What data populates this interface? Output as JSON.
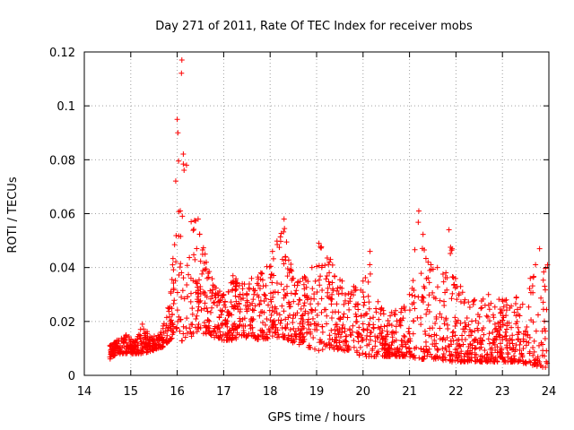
{
  "chart_data": {
    "type": "scatter",
    "title": "Day 271 of 2011, Rate Of TEC Index for receiver mobs",
    "xlabel": "GPS time / hours",
    "ylabel": "ROTI / TECUs",
    "xlim": [
      14,
      24
    ],
    "ylim": [
      0,
      0.12
    ],
    "xticks": [
      "14",
      "15",
      "16",
      "17",
      "18",
      "19",
      "20",
      "21",
      "22",
      "23",
      "24"
    ],
    "yticks": [
      "0",
      "0.02",
      "0.04",
      "0.06",
      "0.08",
      "0.1",
      "0.12"
    ],
    "grid": true,
    "marker": "+",
    "color": "#ff0000",
    "envelope": [
      [
        14.55,
        0.006,
        0.011
      ],
      [
        14.7,
        0.008,
        0.013
      ],
      [
        14.9,
        0.008,
        0.015
      ],
      [
        15.1,
        0.008,
        0.013
      ],
      [
        15.25,
        0.008,
        0.019
      ],
      [
        15.45,
        0.009,
        0.014
      ],
      [
        15.65,
        0.01,
        0.016
      ],
      [
        15.8,
        0.012,
        0.025
      ],
      [
        15.9,
        0.014,
        0.041
      ],
      [
        16.0,
        0.015,
        0.095
      ],
      [
        16.1,
        0.012,
        0.117
      ],
      [
        16.2,
        0.013,
        0.078
      ],
      [
        16.3,
        0.014,
        0.057
      ],
      [
        16.45,
        0.016,
        0.058
      ],
      [
        16.6,
        0.015,
        0.045
      ],
      [
        16.8,
        0.014,
        0.033
      ],
      [
        17.0,
        0.013,
        0.03
      ],
      [
        17.2,
        0.013,
        0.037
      ],
      [
        17.4,
        0.014,
        0.034
      ],
      [
        17.6,
        0.014,
        0.036
      ],
      [
        17.8,
        0.013,
        0.038
      ],
      [
        18.05,
        0.014,
        0.046
      ],
      [
        18.3,
        0.014,
        0.058
      ],
      [
        18.5,
        0.012,
        0.036
      ],
      [
        18.7,
        0.011,
        0.036
      ],
      [
        18.9,
        0.01,
        0.04
      ],
      [
        19.05,
        0.009,
        0.049
      ],
      [
        19.3,
        0.01,
        0.043
      ],
      [
        19.55,
        0.009,
        0.035
      ],
      [
        19.8,
        0.008,
        0.033
      ],
      [
        20.0,
        0.007,
        0.035
      ],
      [
        20.15,
        0.007,
        0.046
      ],
      [
        20.4,
        0.007,
        0.025
      ],
      [
        20.7,
        0.007,
        0.024
      ],
      [
        21.0,
        0.007,
        0.03
      ],
      [
        21.2,
        0.006,
        0.061
      ],
      [
        21.4,
        0.006,
        0.042
      ],
      [
        21.6,
        0.006,
        0.04
      ],
      [
        21.85,
        0.005,
        0.054
      ],
      [
        22.1,
        0.005,
        0.033
      ],
      [
        22.4,
        0.005,
        0.028
      ],
      [
        22.7,
        0.005,
        0.03
      ],
      [
        23.0,
        0.005,
        0.028
      ],
      [
        23.3,
        0.005,
        0.029
      ],
      [
        23.6,
        0.004,
        0.036
      ],
      [
        23.8,
        0.003,
        0.047
      ],
      [
        23.97,
        0.003,
        0.041
      ]
    ]
  }
}
